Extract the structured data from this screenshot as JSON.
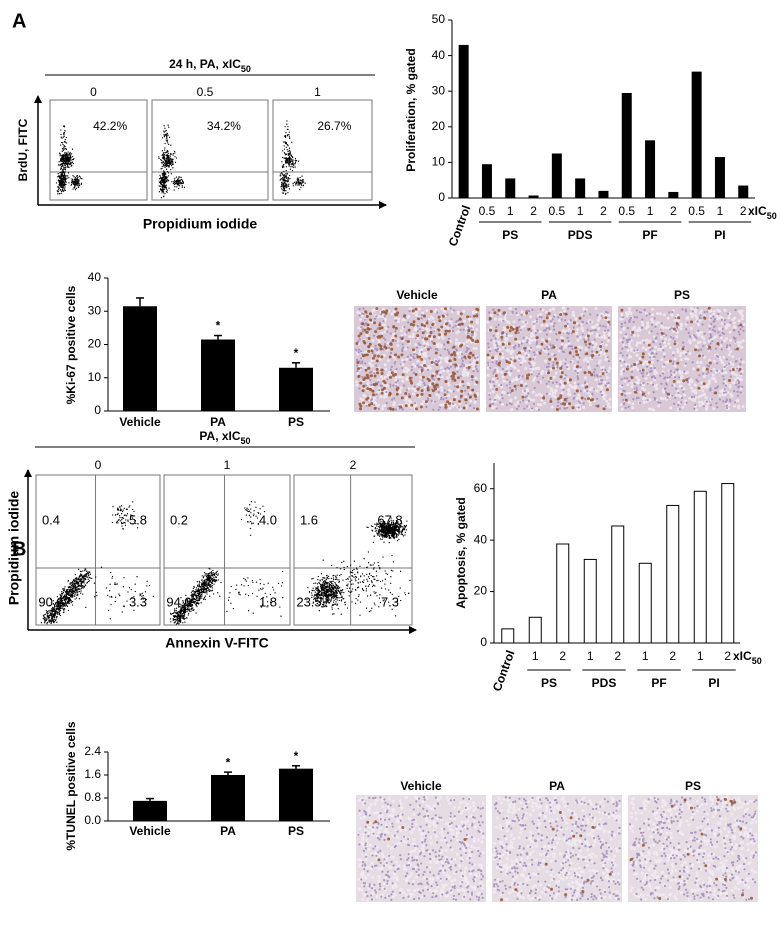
{
  "panel_labels": [
    "A",
    "B"
  ],
  "flow_a": {
    "title": "24 h, PA, xIC",
    "title_sub": "50",
    "doses": [
      "0",
      "0.5",
      "1"
    ],
    "percentages": [
      "42.2%",
      "34.2%",
      "26.7%"
    ],
    "y_label": "BrdU, FITC",
    "x_label": "Propidium iodide"
  },
  "flow_b": {
    "title": "PA, xIC",
    "title_sub": "50",
    "doses": [
      "0",
      "1",
      "2"
    ],
    "quadrants": [
      [
        "0.4",
        "5.8",
        "90.6",
        "3.3"
      ],
      [
        "0.2",
        "4.0",
        "94.0",
        "1.8"
      ],
      [
        "1.6",
        "67.8",
        "23.5",
        "7.3"
      ]
    ],
    "y_label": "Propidium iodide",
    "x_label": "Annexin V-FITC"
  },
  "histology_a": {
    "labels": [
      "Vehicle",
      "PA",
      "PS"
    ]
  },
  "histology_b": {
    "labels": [
      "Vehicle",
      "PA",
      "PS"
    ]
  },
  "chart_data": [
    {
      "type": "bar",
      "y_label": "Proliferation, % gated",
      "categories": [
        "Control",
        "0.5",
        "1",
        "2",
        "0.5",
        "1",
        "2",
        "0.5",
        "1",
        "2",
        "0.5",
        "1",
        "2"
      ],
      "groups": [
        "PS",
        "PDS",
        "PF",
        "PI"
      ],
      "x_unit": "xIC",
      "x_unit_sub": "50",
      "series": [
        {
          "color": "#000000",
          "values": [
            43,
            9.5,
            5.5,
            0.7,
            12.5,
            5.5,
            2,
            29.5,
            16.2,
            1.7,
            35.5,
            11.5,
            3.5
          ]
        }
      ],
      "ylim": [
        0,
        50
      ],
      "yticks": [
        0,
        10,
        20,
        30,
        40,
        50
      ]
    },
    {
      "type": "bar",
      "y_label": "%Ki-67 positive cells",
      "categories": [
        "Vehicle",
        "PA",
        "PS"
      ],
      "series": [
        {
          "color": "#000000",
          "values": [
            31.5,
            21.5,
            13
          ],
          "errors": [
            2.5,
            1.2,
            1.5
          ]
        }
      ],
      "significance": [
        null,
        "*",
        "*"
      ],
      "ylim": [
        0,
        40
      ],
      "yticks": [
        0,
        10,
        20,
        30,
        40
      ]
    },
    {
      "type": "bar",
      "y_label": "Apoptosis, % gated",
      "categories": [
        "Control",
        "1",
        "2",
        "1",
        "2",
        "1",
        "2",
        "1",
        "2"
      ],
      "groups": [
        "PS",
        "PDS",
        "PF",
        "PI"
      ],
      "x_unit": "xIC",
      "x_unit_sub": "50",
      "series": [
        {
          "color": "#ffffff",
          "edge_color": "#000000",
          "values": [
            5.5,
            10,
            38.5,
            32.5,
            45.5,
            31,
            53.5,
            59,
            62
          ]
        }
      ],
      "ylim": [
        0,
        70
      ],
      "yticks": [
        0,
        20,
        40,
        60
      ]
    },
    {
      "type": "bar",
      "y_label": "%TUNEL positive cells",
      "categories": [
        "Vehicle",
        "PA",
        "PS"
      ],
      "series": [
        {
          "color": "#000000",
          "values": [
            0.7,
            1.6,
            1.82
          ],
          "errors": [
            0.08,
            0.1,
            0.1
          ]
        }
      ],
      "significance": [
        null,
        "*",
        "*"
      ],
      "ylim": [
        0,
        2.4
      ],
      "yticks": [
        {
          "value": 0,
          "label": "0.0"
        },
        0.8,
        1.6,
        2.4
      ]
    }
  ]
}
